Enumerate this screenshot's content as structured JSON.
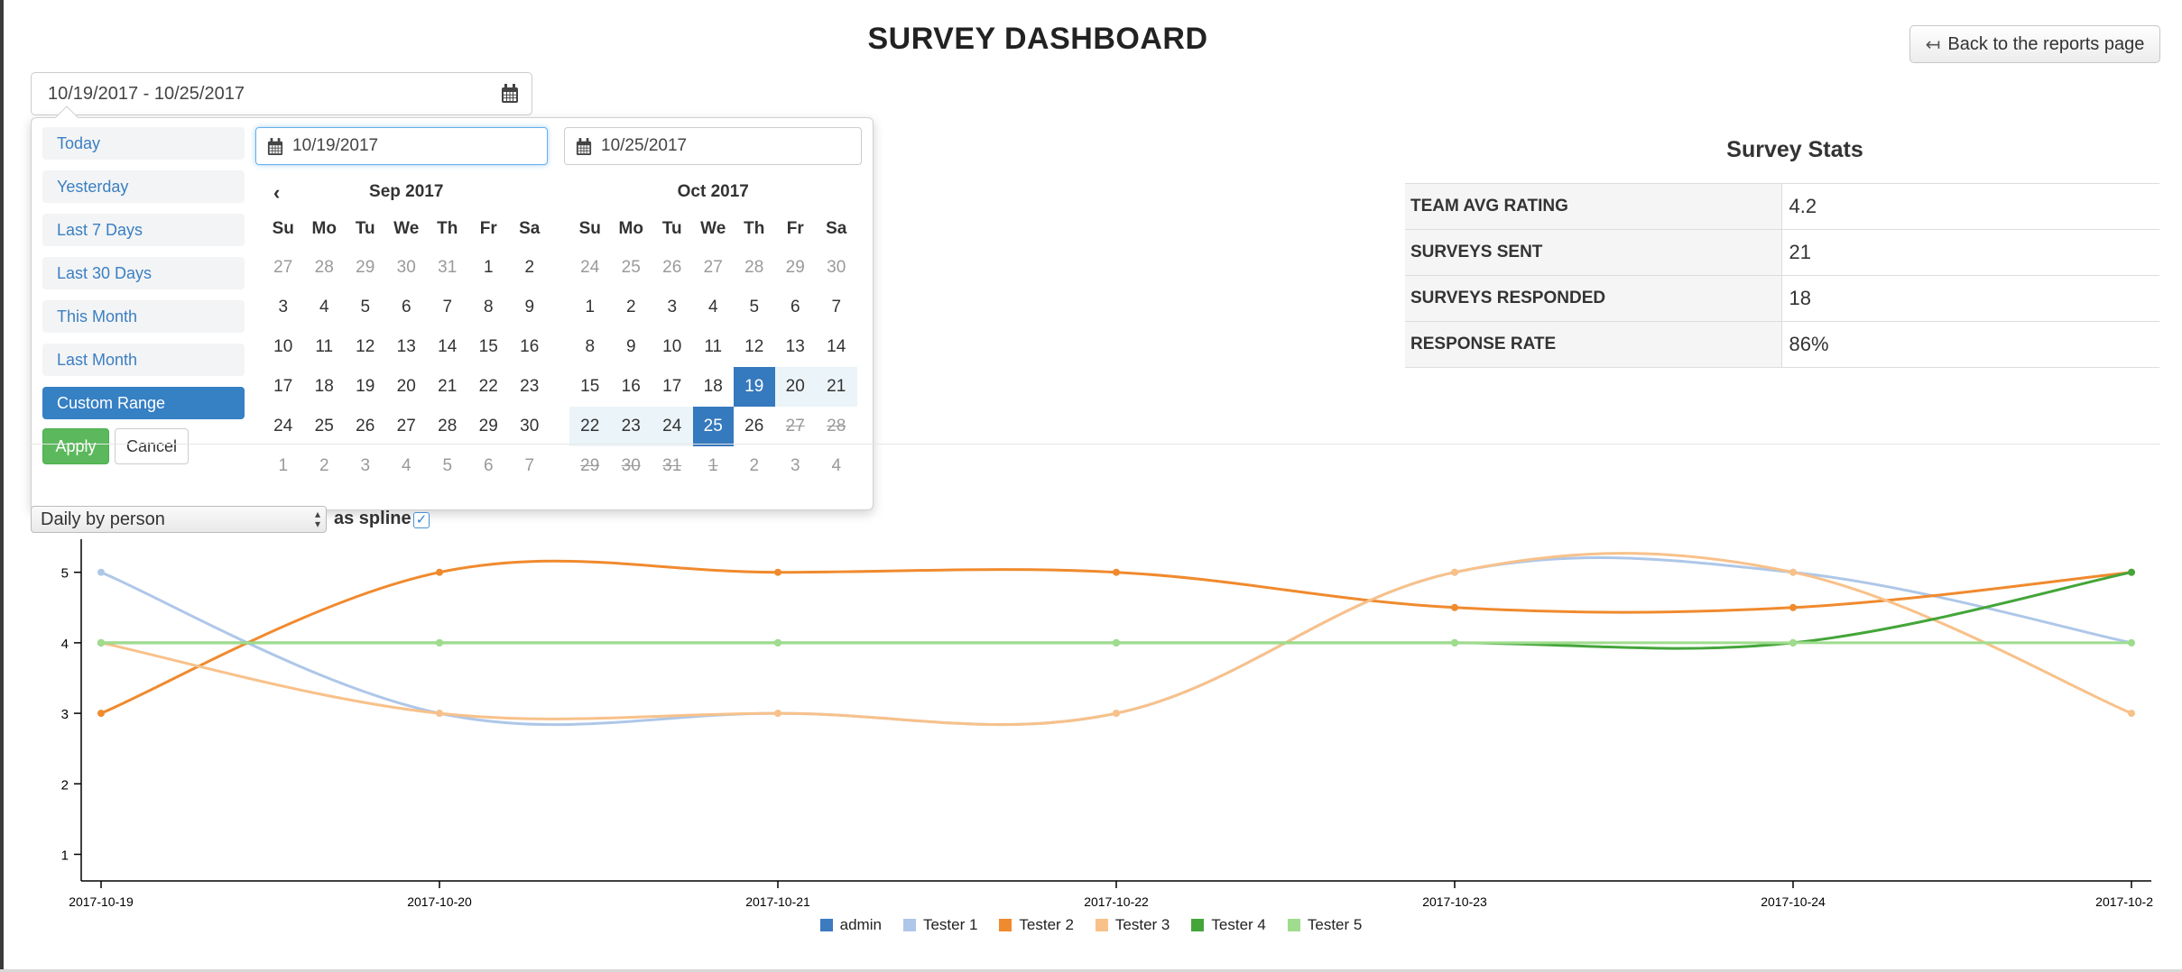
{
  "header": {
    "title": "SURVEY DASHBOARD",
    "back_label": "Back to the reports page"
  },
  "date_range": {
    "value": "10/19/2017 - 10/25/2017"
  },
  "picker": {
    "ranges": [
      "Today",
      "Yesterday",
      "Last 7 Days",
      "Last 30 Days",
      "This Month",
      "Last Month",
      "Custom Range"
    ],
    "active_range": "Custom Range",
    "apply_label": "Apply",
    "cancel_label": "Cancel",
    "start_input": "10/19/2017",
    "end_input": "10/25/2017",
    "weekdays": [
      "Su",
      "Mo",
      "Tu",
      "We",
      "Th",
      "Fr",
      "Sa"
    ],
    "months": [
      {
        "title": "Sep 2017",
        "days": [
          {
            "d": "27",
            "s": "off"
          },
          {
            "d": "28",
            "s": "off"
          },
          {
            "d": "29",
            "s": "off"
          },
          {
            "d": "30",
            "s": "off"
          },
          {
            "d": "31",
            "s": "off"
          },
          {
            "d": "1"
          },
          {
            "d": "2"
          },
          {
            "d": "3"
          },
          {
            "d": "4"
          },
          {
            "d": "5"
          },
          {
            "d": "6"
          },
          {
            "d": "7"
          },
          {
            "d": "8"
          },
          {
            "d": "9"
          },
          {
            "d": "10"
          },
          {
            "d": "11"
          },
          {
            "d": "12"
          },
          {
            "d": "13"
          },
          {
            "d": "14"
          },
          {
            "d": "15"
          },
          {
            "d": "16"
          },
          {
            "d": "17"
          },
          {
            "d": "18"
          },
          {
            "d": "19"
          },
          {
            "d": "20"
          },
          {
            "d": "21"
          },
          {
            "d": "22"
          },
          {
            "d": "23"
          },
          {
            "d": "24"
          },
          {
            "d": "25"
          },
          {
            "d": "26"
          },
          {
            "d": "27"
          },
          {
            "d": "28"
          },
          {
            "d": "29"
          },
          {
            "d": "30"
          },
          {
            "d": "1",
            "s": "off"
          },
          {
            "d": "2",
            "s": "off"
          },
          {
            "d": "3",
            "s": "off"
          },
          {
            "d": "4",
            "s": "off"
          },
          {
            "d": "5",
            "s": "off"
          },
          {
            "d": "6",
            "s": "off"
          },
          {
            "d": "7",
            "s": "off"
          }
        ]
      },
      {
        "title": "Oct 2017",
        "days": [
          {
            "d": "24",
            "s": "off"
          },
          {
            "d": "25",
            "s": "off"
          },
          {
            "d": "26",
            "s": "off"
          },
          {
            "d": "27",
            "s": "off"
          },
          {
            "d": "28",
            "s": "off"
          },
          {
            "d": "29",
            "s": "off"
          },
          {
            "d": "30",
            "s": "off"
          },
          {
            "d": "1"
          },
          {
            "d": "2"
          },
          {
            "d": "3"
          },
          {
            "d": "4"
          },
          {
            "d": "5"
          },
          {
            "d": "6"
          },
          {
            "d": "7"
          },
          {
            "d": "8"
          },
          {
            "d": "9"
          },
          {
            "d": "10"
          },
          {
            "d": "11"
          },
          {
            "d": "12"
          },
          {
            "d": "13"
          },
          {
            "d": "14"
          },
          {
            "d": "15"
          },
          {
            "d": "16"
          },
          {
            "d": "17"
          },
          {
            "d": "18"
          },
          {
            "d": "19",
            "s": "sel"
          },
          {
            "d": "20",
            "s": "inr"
          },
          {
            "d": "21",
            "s": "inr"
          },
          {
            "d": "22",
            "s": "inr"
          },
          {
            "d": "23",
            "s": "inr"
          },
          {
            "d": "24",
            "s": "inr"
          },
          {
            "d": "25",
            "s": "sel"
          },
          {
            "d": "26"
          },
          {
            "d": "27",
            "s": "dis"
          },
          {
            "d": "28",
            "s": "dis"
          },
          {
            "d": "29",
            "s": "dis"
          },
          {
            "d": "30",
            "s": "dis"
          },
          {
            "d": "31",
            "s": "dis"
          },
          {
            "d": "1",
            "s": "dis"
          },
          {
            "d": "2",
            "s": "off"
          },
          {
            "d": "3",
            "s": "off"
          },
          {
            "d": "4",
            "s": "off"
          }
        ]
      }
    ]
  },
  "stats": {
    "title": "Survey Stats",
    "rows": [
      {
        "label": "TEAM AVG RATING",
        "value": "4.2"
      },
      {
        "label": "SURVEYS SENT",
        "value": "21"
      },
      {
        "label": "SURVEYS RESPONDED",
        "value": "18"
      },
      {
        "label": "RESPONSE RATE",
        "value": "86%"
      }
    ]
  },
  "chart_controls": {
    "view": "Daily by person",
    "spline_label": "as spline",
    "spline_checked": true
  },
  "chart_data": {
    "type": "line",
    "x": [
      "2017-10-19",
      "2017-10-20",
      "2017-10-21",
      "2017-10-22",
      "2017-10-23",
      "2017-10-24",
      "2017-10-2"
    ],
    "yticks": [
      1,
      2,
      3,
      4,
      5
    ],
    "ylim": [
      0.6,
      5.4
    ],
    "smooth": true,
    "grid": false,
    "legend_position": "bottom",
    "series": [
      {
        "name": "admin",
        "color": "#3c7bbf",
        "values": [
          null,
          null,
          null,
          null,
          null,
          null,
          null
        ]
      },
      {
        "name": "Tester 1",
        "color": "#aec7e8",
        "values": [
          5,
          3,
          3,
          3,
          5,
          5,
          4
        ]
      },
      {
        "name": "Tester 2",
        "color": "#f08a2e",
        "values": [
          3,
          5,
          5,
          5,
          4.5,
          4.5,
          5
        ]
      },
      {
        "name": "Tester 3",
        "color": "#f8c18a",
        "values": [
          4,
          3,
          3,
          3,
          5,
          5,
          3
        ]
      },
      {
        "name": "Tester 4",
        "color": "#44a53a",
        "values": [
          4,
          4,
          4,
          4,
          4,
          4,
          5
        ]
      },
      {
        "name": "Tester 5",
        "color": "#9fdc8e",
        "values": [
          4,
          4,
          4,
          4,
          4,
          4,
          4
        ]
      }
    ]
  }
}
